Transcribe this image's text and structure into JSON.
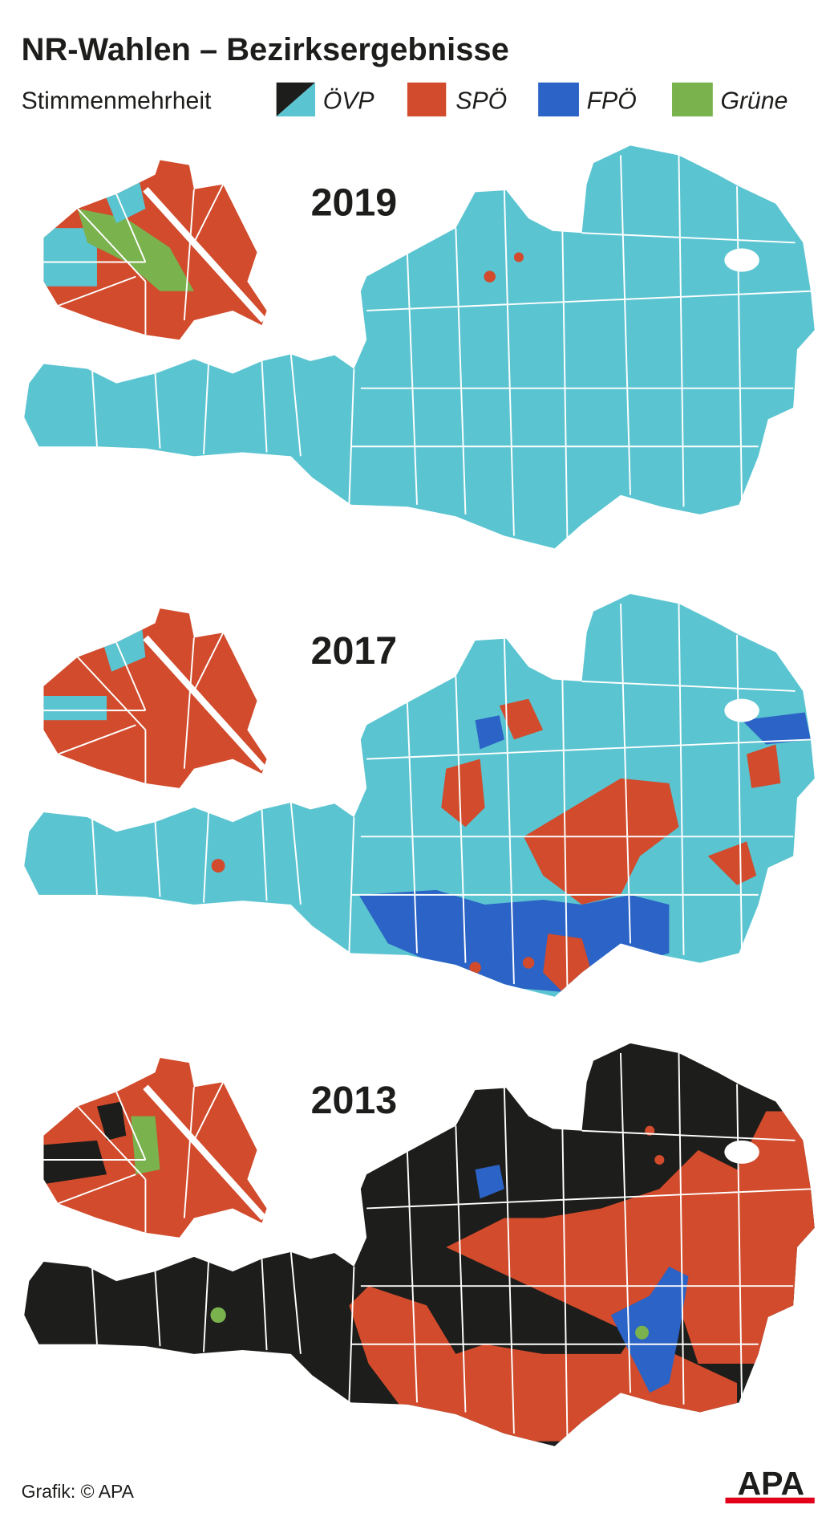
{
  "header": {
    "title": "NR-Wahlen – Bezirksergebnisse",
    "legend_label": "Stimmenmehrheit",
    "legend": [
      "ÖVP",
      "SPÖ",
      "FPÖ",
      "Grüne"
    ]
  },
  "maps": [
    {
      "year": "2019"
    },
    {
      "year": "2017"
    },
    {
      "year": "2013"
    }
  ],
  "footer": {
    "credit": "Grafik: © APA",
    "logo": "APA"
  }
}
